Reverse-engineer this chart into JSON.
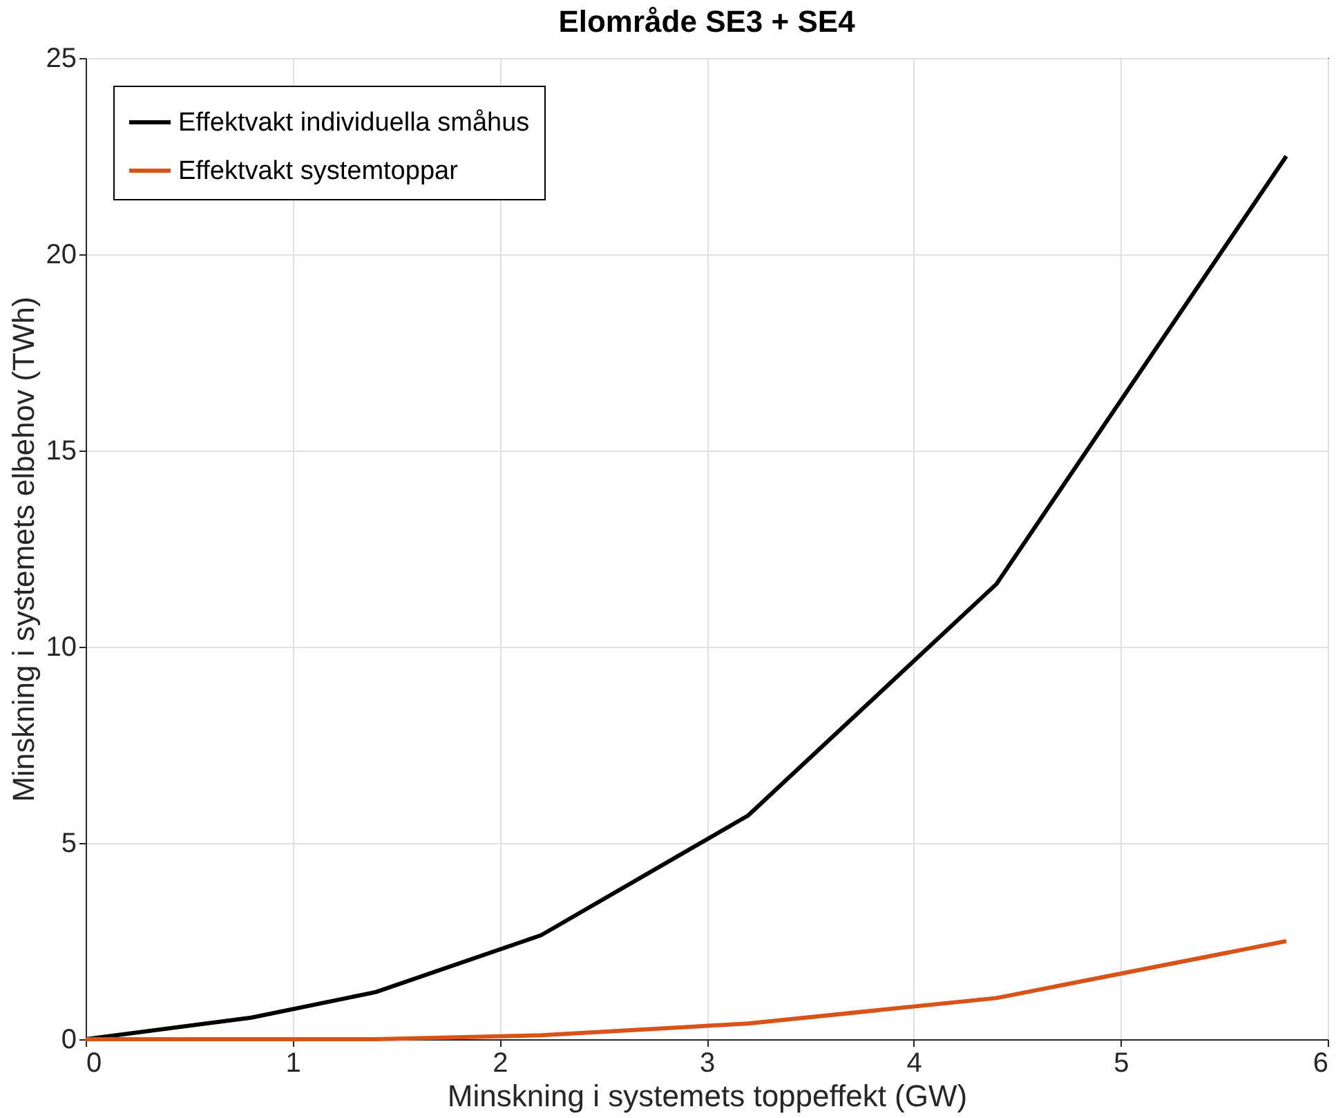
{
  "chart_data": {
    "type": "line",
    "title": "Elområde SE3 + SE4",
    "xlabel": "Minskning i systemets toppeffekt (GW)",
    "ylabel": "Minskning i systemets elbehov (TWh)",
    "x": [
      0,
      0.8,
      1.4,
      2.2,
      3.2,
      4.4,
      5.8
    ],
    "series": [
      {
        "name": "Effektvakt individuella småhus",
        "color": "#000000",
        "values": [
          0,
          0.55,
          1.2,
          2.65,
          5.7,
          11.6,
          22.5
        ]
      },
      {
        "name": "Effektvakt systemtoppar",
        "color": "#d95319",
        "values": [
          0,
          0,
          0,
          0.1,
          0.4,
          1.05,
          2.5
        ]
      }
    ],
    "xlim": [
      0,
      6
    ],
    "xticks": [
      0,
      1,
      2,
      3,
      4,
      5,
      6
    ],
    "ylim": [
      0,
      25
    ],
    "yticks": [
      0,
      5,
      10,
      15,
      20,
      25
    ],
    "grid": true,
    "legend": "top left",
    "marker": "none",
    "line_style": "solid"
  }
}
